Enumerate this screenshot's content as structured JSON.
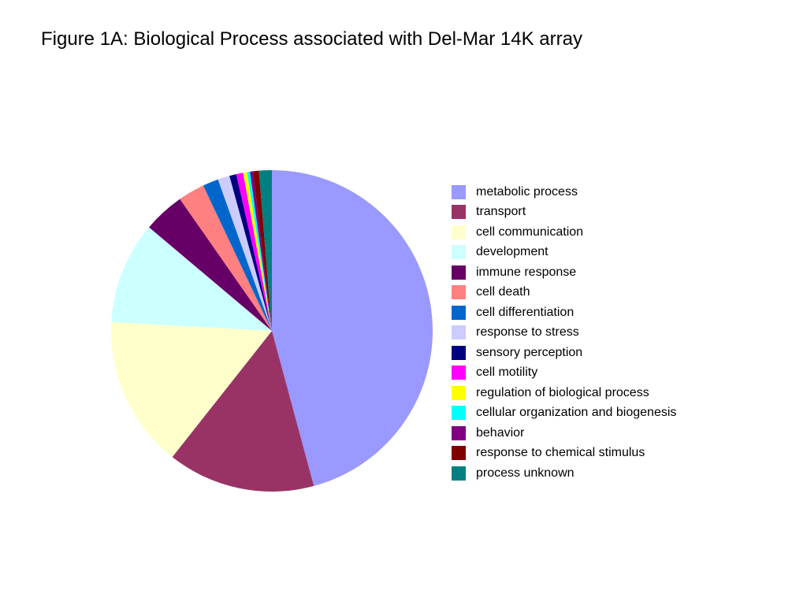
{
  "title": "Figure 1A: Biological Process associated with Del-Mar 14K array",
  "chart_data": {
    "type": "pie",
    "title": "Figure 1A: Biological Process associated with Del-Mar 14K array",
    "start": "top",
    "direction": "clockwise",
    "legend_position": "right",
    "slices": [
      {
        "label": "metabolic process",
        "value": 46.3,
        "color": "#9999ff"
      },
      {
        "label": "transport",
        "value": 15.0,
        "color": "#993366"
      },
      {
        "label": "cell communication",
        "value": 15.4,
        "color": "#ffffcc"
      },
      {
        "label": "development",
        "value": 10.4,
        "color": "#ccffff"
      },
      {
        "label": "immune response",
        "value": 4.2,
        "color": "#660066"
      },
      {
        "label": "cell death",
        "value": 2.7,
        "color": "#ff8080"
      },
      {
        "label": "cell differentiation",
        "value": 1.6,
        "color": "#0066cc"
      },
      {
        "label": "response to stress",
        "value": 1.2,
        "color": "#ccccff"
      },
      {
        "label": "sensory perception",
        "value": 0.7,
        "color": "#000080"
      },
      {
        "label": "cell motility",
        "value": 0.7,
        "color": "#ff00ff"
      },
      {
        "label": "regulation of biological process",
        "value": 0.4,
        "color": "#ffff00"
      },
      {
        "label": "cellular organization and biogenesis",
        "value": 0.3,
        "color": "#00ffff"
      },
      {
        "label": "behavior",
        "value": 0.3,
        "color": "#800080"
      },
      {
        "label": "response to chemical stimulus",
        "value": 0.6,
        "color": "#800000"
      },
      {
        "label": "process unknown",
        "value": 1.3,
        "color": "#008080"
      }
    ]
  }
}
